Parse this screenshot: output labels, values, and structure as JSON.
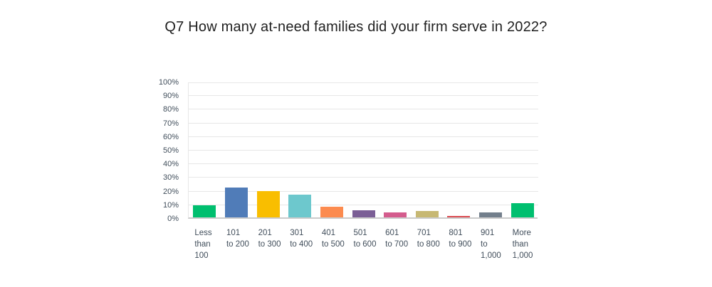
{
  "title": "Q7 How many at-need families did your firm serve in 2022?",
  "chart_data": {
    "type": "bar",
    "title": "Q7 How many at-need families did your firm serve in 2022?",
    "categories": [
      "Less than 100",
      "101 to 200",
      "201 to 300",
      "301 to 400",
      "401 to 500",
      "501 to 600",
      "601 to 700",
      "701 to 800",
      "801 to 900",
      "901 to 1,000",
      "More than 1,000"
    ],
    "category_label_lines": [
      [
        "Less",
        "than",
        "100"
      ],
      [
        "101",
        "to 200"
      ],
      [
        "201",
        "to 300"
      ],
      [
        "301",
        "to 400"
      ],
      [
        "401",
        "to 500"
      ],
      [
        "501",
        "to 600"
      ],
      [
        "601",
        "to 700"
      ],
      [
        "701",
        "to 800"
      ],
      [
        "801",
        "to 900"
      ],
      [
        "901",
        "to",
        "1,000"
      ],
      [
        "More",
        "than",
        "1,000"
      ]
    ],
    "values": [
      9,
      22,
      19.5,
      16.8,
      8,
      5.4,
      3.7,
      4.5,
      1,
      3.4,
      10.5
    ],
    "unit": "%",
    "bar_colors": [
      "#00BF6F",
      "#507CB8",
      "#F9BE00",
      "#6DC8CD",
      "#FC8B4F",
      "#7B5F96",
      "#D45C8D",
      "#C7B873",
      "#DB4A50",
      "#737F8C",
      "#00BF6F"
    ],
    "xlabel": "",
    "ylabel": "",
    "ylim": [
      0,
      100
    ],
    "y_ticks": [
      "0%",
      "10%",
      "20%",
      "30%",
      "40%",
      "50%",
      "60%",
      "70%",
      "80%",
      "90%",
      "100%"
    ],
    "grid": true,
    "legend_position": "none"
  },
  "colors": {
    "background": "#ffffff",
    "gridline": "#e7e7e7",
    "axis_line": "#cbcbcb",
    "tick_label": "#414e5b",
    "title_text": "#1f1f1f"
  }
}
